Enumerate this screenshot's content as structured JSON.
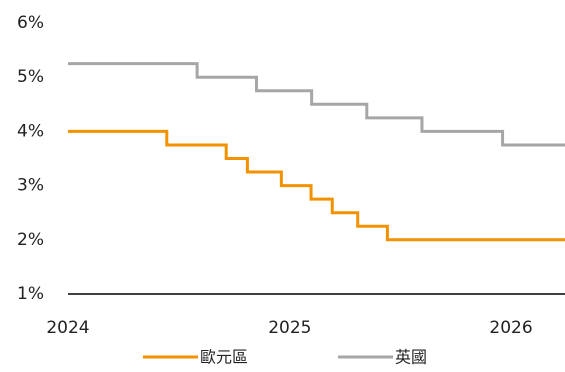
{
  "chart_data": {
    "type": "line",
    "step": true,
    "title": "",
    "xlabel": "",
    "ylabel": "",
    "ylim": [
      1,
      6
    ],
    "yticks": [
      "1%",
      "2%",
      "3%",
      "4%",
      "5%",
      "6%"
    ],
    "xlim": [
      "2024-01-01",
      "2026-03-31"
    ],
    "xticks": [
      {
        "label": "2024",
        "date": "2024-01-01"
      },
      {
        "label": "2025",
        "date": "2025-01-01"
      },
      {
        "label": "2026",
        "date": "2026-01-01"
      }
    ],
    "grid": false,
    "legend": "bottom",
    "series": [
      {
        "name": "歐元區",
        "color": "#f39200",
        "points": [
          {
            "x": "2024-01-01",
            "y": 4.0
          },
          {
            "x": "2024-06-12",
            "y": 3.75
          },
          {
            "x": "2024-09-18",
            "y": 3.5
          },
          {
            "x": "2024-10-23",
            "y": 3.25
          },
          {
            "x": "2024-12-18",
            "y": 3.0
          },
          {
            "x": "2025-02-05",
            "y": 2.75
          },
          {
            "x": "2025-03-12",
            "y": 2.5
          },
          {
            "x": "2025-04-23",
            "y": 2.25
          },
          {
            "x": "2025-06-11",
            "y": 2.0
          },
          {
            "x": "2026-03-31",
            "y": 2.0
          }
        ]
      },
      {
        "name": "英國",
        "color": "#a6a6a6",
        "points": [
          {
            "x": "2024-01-01",
            "y": 5.25
          },
          {
            "x": "2024-08-01",
            "y": 5.0
          },
          {
            "x": "2024-11-07",
            "y": 4.75
          },
          {
            "x": "2025-02-06",
            "y": 4.5
          },
          {
            "x": "2025-05-08",
            "y": 4.25
          },
          {
            "x": "2025-08-07",
            "y": 4.0
          },
          {
            "x": "2025-12-18",
            "y": 3.75
          },
          {
            "x": "2026-03-31",
            "y": 3.75
          }
        ]
      }
    ]
  }
}
